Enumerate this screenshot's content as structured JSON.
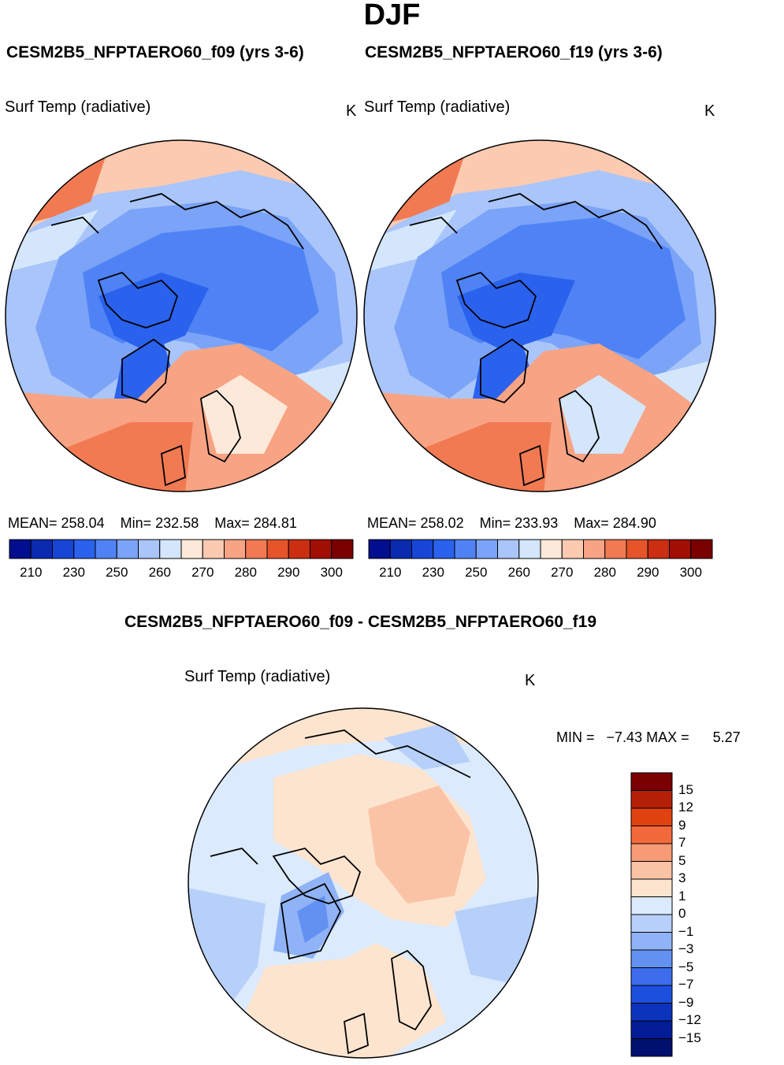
{
  "page": {
    "title": "DJF",
    "diff_title": "CESM2B5_NFPTAERO60_f09 - CESM2B5_NFPTAERO60_f19"
  },
  "chart_data": [
    {
      "type": "map",
      "projection": "north-polar-stereographic",
      "case_title": "CESM2B5_NFPTAERO60_f09 (yrs 3-6)",
      "variable": "Surf Temp (radiative)",
      "units": "K",
      "mean_label": "MEAN=",
      "mean": "258.04",
      "min_label": "Min=",
      "min": "232.58",
      "max_label": "Max=",
      "max": "284.81",
      "colorbar": {
        "orientation": "horizontal",
        "levels": [
          210,
          220,
          230,
          240,
          250,
          255,
          260,
          265,
          270,
          275,
          280,
          285,
          290,
          295,
          300
        ],
        "tick_labels": [
          "210",
          "230",
          "250",
          "260",
          "270",
          "280",
          "290",
          "300"
        ],
        "colors": [
          "#000e8f",
          "#0a2bb0",
          "#1746d6",
          "#2a62ee",
          "#4f83f5",
          "#7ba3f7",
          "#a9c5fa",
          "#d4e6fb",
          "#fde9da",
          "#fbcab1",
          "#f8a383",
          "#f27a52",
          "#e6542a",
          "#cc2e12",
          "#a10e04",
          "#7a0000"
        ]
      }
    },
    {
      "type": "map",
      "projection": "north-polar-stereographic",
      "case_title": "CESM2B5_NFPTAERO60_f19 (yrs 3-6)",
      "variable": "Surf Temp (radiative)",
      "units": "K",
      "mean_label": "MEAN=",
      "mean": "258.02",
      "min_label": "Min=",
      "min": "233.93",
      "max_label": "Max=",
      "max": "284.90",
      "colorbar": {
        "orientation": "horizontal",
        "levels": [
          210,
          220,
          230,
          240,
          250,
          255,
          260,
          265,
          270,
          275,
          280,
          285,
          290,
          295,
          300
        ],
        "tick_labels": [
          "210",
          "230",
          "250",
          "260",
          "270",
          "280",
          "290",
          "300"
        ],
        "colors": [
          "#000e8f",
          "#0a2bb0",
          "#1746d6",
          "#2a62ee",
          "#4f83f5",
          "#7ba3f7",
          "#a9c5fa",
          "#d4e6fb",
          "#fde9da",
          "#fbcab1",
          "#f8a383",
          "#f27a52",
          "#e6542a",
          "#cc2e12",
          "#a10e04",
          "#7a0000"
        ]
      }
    },
    {
      "type": "map",
      "projection": "north-polar-stereographic",
      "case_title": "CESM2B5_NFPTAERO60_f09 - CESM2B5_NFPTAERO60_f19",
      "variable": "Surf Temp (radiative)",
      "units": "K",
      "min_label": "MIN =",
      "min": "−7.43",
      "max_label": "MAX =",
      "max": "5.27",
      "colorbar": {
        "orientation": "vertical",
        "levels": [
          15,
          12,
          9,
          7,
          5,
          3,
          1,
          0,
          -1,
          -3,
          -5,
          -7,
          -9,
          -12,
          -15
        ],
        "tick_labels": [
          "15",
          "12",
          "9",
          "7",
          "5",
          "3",
          "1",
          "0",
          "−1",
          "−3",
          "−5",
          "−7",
          "−9",
          "−12",
          "−15"
        ],
        "colors_top_to_bottom": [
          "#7a0000",
          "#b31f07",
          "#e0430f",
          "#f26a3c",
          "#f79a76",
          "#fbc3a6",
          "#fde4cf",
          "#dbeafc",
          "#b7d0fa",
          "#8fb3f6",
          "#6391f2",
          "#3d6ded",
          "#1d4fde",
          "#0b33bb",
          "#021c96",
          "#00106f"
        ]
      }
    }
  ]
}
